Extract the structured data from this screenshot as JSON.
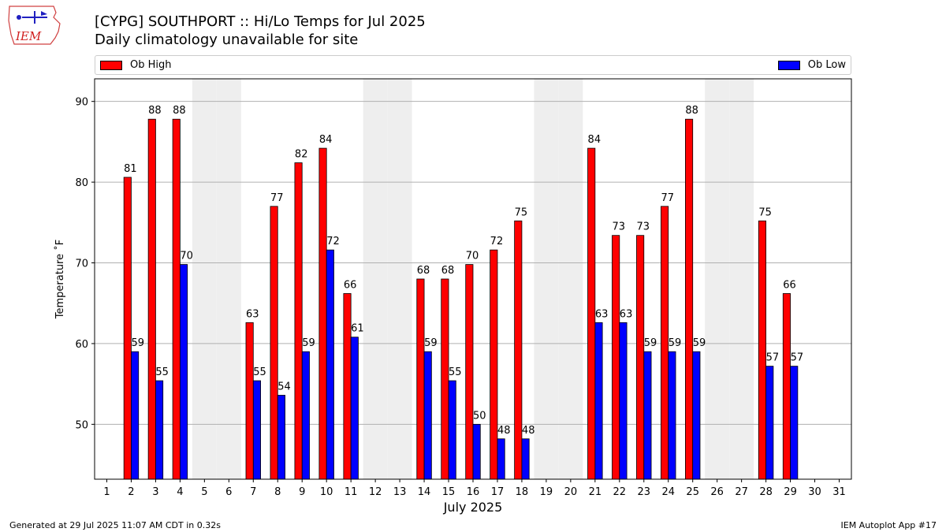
{
  "logo": {
    "text": "IEM"
  },
  "header": {
    "title": "[CYPG] SOUTHPORT :: Hi/Lo Temps for Jul 2025",
    "subtitle": "Daily climatology unavailable for site"
  },
  "legend": {
    "high_label": "Ob High",
    "low_label": "Ob Low"
  },
  "footer": {
    "generated": "Generated at 29 Jul 2025 11:07 AM CDT in 0.32s",
    "app": "IEM Autoplot App #17"
  },
  "colors": {
    "high": "#ff0000",
    "low": "#0000ff",
    "weekend": "#eeeeee",
    "grid": "#b0b0b0"
  },
  "chart_data": {
    "type": "bar",
    "title": "[CYPG] SOUTHPORT :: Hi/Lo Temps for Jul 2025",
    "subtitle": "Daily climatology unavailable for site",
    "xlabel": "July 2025",
    "ylabel": "Temperature ˚F",
    "xlim": [
      0.5,
      31.5
    ],
    "ylim": [
      43.2,
      92.8
    ],
    "yticks": [
      50,
      60,
      70,
      80,
      90
    ],
    "grid": "y",
    "legend_position": "top",
    "categories": [
      "1",
      "2",
      "3",
      "4",
      "5",
      "6",
      "7",
      "8",
      "9",
      "10",
      "11",
      "12",
      "13",
      "14",
      "15",
      "16",
      "17",
      "18",
      "19",
      "20",
      "21",
      "22",
      "23",
      "24",
      "25",
      "26",
      "27",
      "28",
      "29",
      "30",
      "31"
    ],
    "shaded_days": [
      5,
      6,
      12,
      13,
      19,
      20,
      26,
      27
    ],
    "series": [
      {
        "name": "Ob High",
        "color": "#ff0000",
        "values": [
          null,
          80.6,
          87.8,
          87.8,
          null,
          null,
          62.6,
          77.0,
          82.4,
          84.2,
          66.2,
          null,
          null,
          68.0,
          68.0,
          69.8,
          71.6,
          75.2,
          null,
          null,
          84.2,
          73.4,
          73.4,
          77.0,
          87.8,
          null,
          null,
          75.2,
          66.2,
          null,
          null
        ],
        "labels": [
          null,
          "81",
          "88",
          "88",
          null,
          null,
          "63",
          "77",
          "82",
          "84",
          "66",
          null,
          null,
          "68",
          "68",
          "70",
          "72",
          "75",
          null,
          null,
          "84",
          "73",
          "73",
          "77",
          "88",
          null,
          null,
          "75",
          "66",
          null,
          null
        ]
      },
      {
        "name": "Ob Low",
        "color": "#0000ff",
        "values": [
          null,
          59.0,
          55.4,
          69.8,
          null,
          null,
          55.4,
          53.6,
          59.0,
          71.6,
          60.8,
          null,
          null,
          59.0,
          55.4,
          50.0,
          48.2,
          48.2,
          null,
          null,
          62.6,
          62.6,
          59.0,
          59.0,
          59.0,
          null,
          null,
          57.2,
          57.2,
          null,
          null
        ],
        "labels": [
          null,
          "59",
          "55",
          "70",
          null,
          null,
          "55",
          "54",
          "59",
          "72",
          "61",
          null,
          null,
          "59",
          "55",
          "50",
          "48",
          "48",
          null,
          null,
          "63",
          "63",
          "59",
          "59",
          "59",
          null,
          null,
          "57",
          "57",
          null,
          null
        ]
      }
    ]
  }
}
